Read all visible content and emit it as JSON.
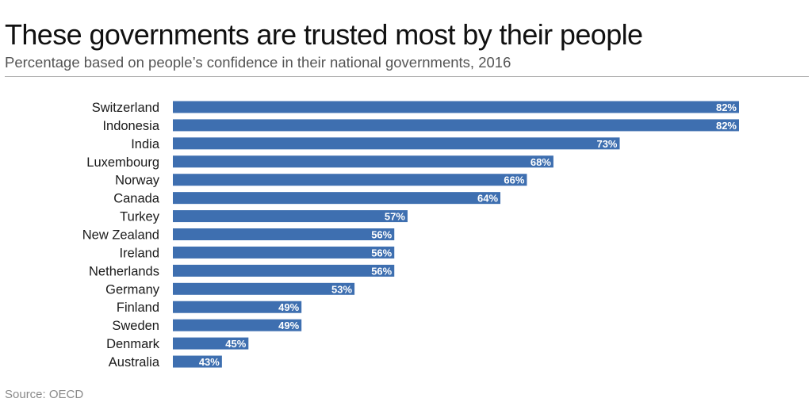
{
  "title": "These governments are trusted most by their people",
  "subtitle": "Percentage based on people’s confidence in their national governments, 2016",
  "source": "Source: OECD",
  "colors": {
    "bar": "#3e6fb0",
    "value_label": "#ffffff",
    "rule": "#b3b3b3"
  },
  "chart_data": {
    "type": "bar",
    "orientation": "horizontal",
    "title": "These governments are trusted most by their people",
    "subtitle": "Percentage based on people’s confidence in their national governments, 2016",
    "categories": [
      "Switzerland",
      "Indonesia",
      "India",
      "Luxembourg",
      "Norway",
      "Canada",
      "Turkey",
      "New Zealand",
      "Ireland",
      "Netherlands",
      "Germany",
      "Finland",
      "Sweden",
      "Denmark",
      "Australia"
    ],
    "values": [
      82,
      82,
      73,
      68,
      66,
      64,
      57,
      56,
      56,
      56,
      53,
      49,
      49,
      45,
      43
    ],
    "value_labels": [
      "82%",
      "82%",
      "73%",
      "68%",
      "66%",
      "64%",
      "57%",
      "56%",
      "56%",
      "56%",
      "53%",
      "49%",
      "49%",
      "45%",
      "43%"
    ],
    "xlim": [
      40,
      82
    ],
    "grid": false,
    "xlabel": "",
    "ylabel": ""
  }
}
